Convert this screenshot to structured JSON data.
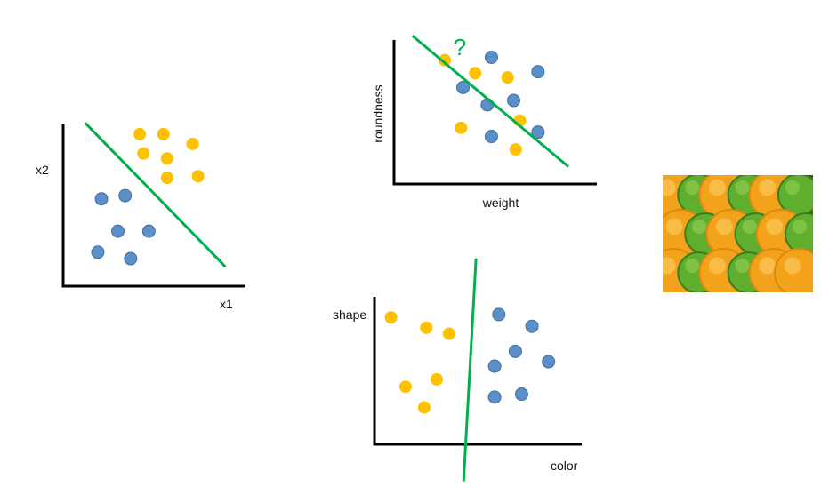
{
  "colors": {
    "class_a": "#FFC000",
    "class_b": "#5B8FC9",
    "class_b_stroke": "#41719C",
    "boundary": "#00B050",
    "axis": "#000000"
  },
  "chart_data": [
    {
      "type": "scatter",
      "title": "",
      "xlabel": "x1",
      "ylabel": "x2",
      "xlim": [
        0,
        10
      ],
      "ylim": [
        0,
        10
      ],
      "series": [
        {
          "name": "yellow",
          "color": "#FFC000",
          "points": [
            [
              4.2,
              9.4
            ],
            [
              5.5,
              9.4
            ],
            [
              4.4,
              8.2
            ],
            [
              5.7,
              7.9
            ],
            [
              7.1,
              8.8
            ],
            [
              7.4,
              6.8
            ],
            [
              5.7,
              6.7
            ]
          ]
        },
        {
          "name": "blue",
          "color": "#5B8FC9",
          "points": [
            [
              2.1,
              5.4
            ],
            [
              3.4,
              5.6
            ],
            [
              3.0,
              3.4
            ],
            [
              4.7,
              3.4
            ],
            [
              1.9,
              2.1
            ],
            [
              3.7,
              1.7
            ]
          ]
        }
      ],
      "boundary": [
        [
          1.2,
          10.1
        ],
        [
          8.9,
          1.2
        ]
      ]
    },
    {
      "type": "scatter",
      "title": "",
      "xlabel": "weight",
      "ylabel": "roundness",
      "annotation": "?",
      "xlim": [
        0,
        10
      ],
      "ylim": [
        0,
        10
      ],
      "series": [
        {
          "name": "yellow",
          "color": "#FFC000",
          "points": [
            [
              2.5,
              8.6
            ],
            [
              4.0,
              7.7
            ],
            [
              5.6,
              7.4
            ],
            [
              6.2,
              4.4
            ],
            [
              3.3,
              3.9
            ],
            [
              6.0,
              2.4
            ]
          ]
        },
        {
          "name": "blue",
          "color": "#5B8FC9",
          "points": [
            [
              4.8,
              8.8
            ],
            [
              7.1,
              7.8
            ],
            [
              3.4,
              6.7
            ],
            [
              4.6,
              5.5
            ],
            [
              5.9,
              5.8
            ],
            [
              4.8,
              3.3
            ],
            [
              7.1,
              3.6
            ]
          ]
        }
      ],
      "boundary": [
        [
          0.9,
          10.3
        ],
        [
          8.6,
          1.2
        ]
      ]
    },
    {
      "type": "scatter",
      "title": "",
      "xlabel": "color",
      "ylabel": "shape",
      "xlim": [
        0,
        10
      ],
      "ylim": [
        0,
        10
      ],
      "series": [
        {
          "name": "yellow",
          "color": "#FFC000",
          "points": [
            [
              0.8,
              8.6
            ],
            [
              2.5,
              7.9
            ],
            [
              3.6,
              7.5
            ],
            [
              1.5,
              3.9
            ],
            [
              3.0,
              4.4
            ],
            [
              2.4,
              2.5
            ]
          ]
        },
        {
          "name": "blue",
          "color": "#5B8FC9",
          "points": [
            [
              6.0,
              8.8
            ],
            [
              7.6,
              8.0
            ],
            [
              6.8,
              6.3
            ],
            [
              8.4,
              5.6
            ],
            [
              5.8,
              5.3
            ],
            [
              5.8,
              3.2
            ],
            [
              7.1,
              3.4
            ]
          ]
        }
      ],
      "boundary": [
        [
          4.9,
          12.6
        ],
        [
          4.3,
          -2.5
        ]
      ]
    }
  ],
  "photo": {
    "label": "oranges and apples",
    "tiles": [
      "orange",
      "apple",
      "orange",
      "apple",
      "orange",
      "apple",
      "orange",
      "apple",
      "orange",
      "apple",
      "orange",
      "apple",
      "orange",
      "apple",
      "orange",
      "apple",
      "orange",
      "orange"
    ]
  }
}
